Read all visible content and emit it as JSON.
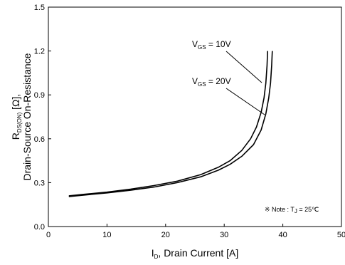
{
  "chart_data": {
    "type": "line",
    "xlabel": {
      "main": "I",
      "sub": "D",
      "rest": ", Drain Current [A]"
    },
    "ylabel": {
      "line1": {
        "main": "R",
        "sub": "DS(ON)",
        "rest": " [Ω],",
        "sub2": ""
      },
      "line2": "Drain-Source On-Resistance"
    },
    "xlim": [
      0,
      50
    ],
    "ylim": [
      0.0,
      1.5
    ],
    "xticks": [
      0,
      10,
      20,
      30,
      40,
      50
    ],
    "yticks": [
      0.0,
      0.3,
      0.6,
      0.9,
      1.2,
      1.5
    ],
    "ytick_labels": [
      "0.0",
      "0.3",
      "0.6",
      "0.9",
      "1.2",
      "1.5"
    ],
    "grid": false,
    "series": [
      {
        "name": "VGS = 10V",
        "label": {
          "main": "V",
          "sub": "GS",
          "rest": " = 10V"
        },
        "x": [
          3.5,
          6,
          10,
          14,
          18,
          22,
          26,
          29,
          31,
          33,
          34.5,
          35.5,
          36.3,
          36.8,
          37.1,
          37.3,
          37.4
        ],
        "y": [
          0.21,
          0.22,
          0.235,
          0.255,
          0.28,
          0.31,
          0.355,
          0.405,
          0.45,
          0.52,
          0.6,
          0.68,
          0.78,
          0.88,
          0.98,
          1.1,
          1.2
        ]
      },
      {
        "name": "VGS = 20V",
        "label": {
          "main": "V",
          "sub": "GS",
          "rest": " = 20V"
        },
        "x": [
          3.5,
          6,
          10,
          14,
          18,
          22,
          26,
          29,
          31,
          33,
          35,
          36.3,
          37.1,
          37.6,
          37.9,
          38.1,
          38.2
        ],
        "y": [
          0.205,
          0.215,
          0.23,
          0.248,
          0.27,
          0.3,
          0.34,
          0.385,
          0.425,
          0.48,
          0.56,
          0.66,
          0.77,
          0.88,
          0.98,
          1.1,
          1.2
        ]
      }
    ],
    "note": {
      "prefix": "※ Note : T",
      "sub": "J",
      "rest": " = 25℃"
    }
  }
}
